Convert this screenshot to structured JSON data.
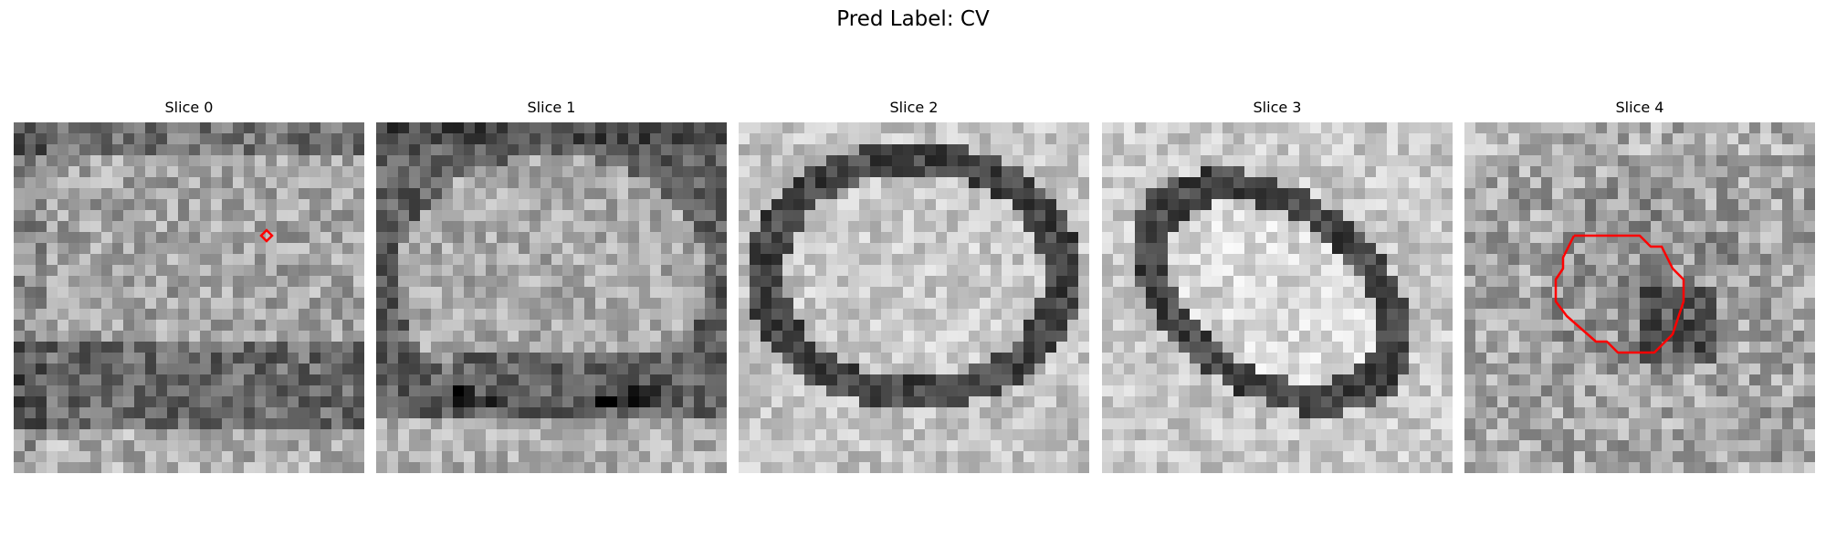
{
  "figure": {
    "suptitle": "Pred Label: CV"
  },
  "panels": [
    {
      "title": "Slice 0",
      "contour": "tiny-diamond"
    },
    {
      "title": "Slice 1",
      "contour": "none"
    },
    {
      "title": "Slice 2",
      "contour": "none"
    },
    {
      "title": "Slice 3",
      "contour": "none"
    },
    {
      "title": "Slice 4",
      "contour": "polygon"
    }
  ],
  "colors": {
    "contour": "#ff0000",
    "background": "#ffffff",
    "colormap": "grayscale"
  }
}
